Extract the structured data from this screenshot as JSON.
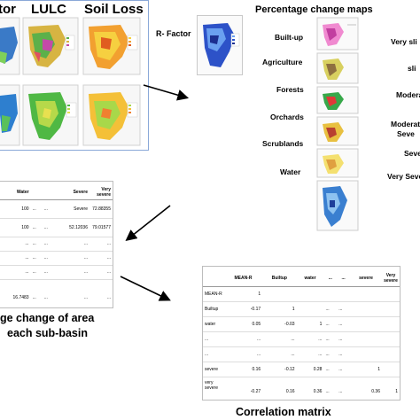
{
  "left_panel": {
    "titles": [
      "tor",
      "LULC",
      "Soil Loss"
    ]
  },
  "r_factor": {
    "label": "R- Factor"
  },
  "percentage_maps": {
    "title": "Percentage change maps",
    "categories": [
      "Built-up",
      "Agriculture",
      "Forests",
      "Orchards",
      "Scrublands",
      "Water"
    ],
    "severity": [
      "Very sli",
      "sli",
      "Modera",
      "Moderat",
      "Seve",
      "Seve",
      "Very Seve"
    ]
  },
  "area_table": {
    "headers": [
      "Water",
      "",
      "",
      "Severe",
      "Very severe"
    ],
    "rows": [
      [
        "100",
        "...",
        "...",
        "Severe",
        "72.88355"
      ],
      [
        "100",
        "...",
        "...",
        "52.12036",
        "79.01577"
      ],
      [
        "...",
        "...",
        "...",
        "...",
        "..."
      ],
      [
        "...",
        "...",
        "...",
        "...",
        "..."
      ],
      [
        "...",
        "...",
        "...",
        "...",
        "..."
      ],
      [
        "16.7483",
        "...",
        "...",
        "...",
        "..."
      ]
    ],
    "caption_line1": "ge change of area",
    "caption_line2": "each sub-basin"
  },
  "correlation": {
    "headers": [
      "",
      "MEAN-R",
      "Builtup",
      "water",
      "...",
      "...",
      "severe",
      "Very severe"
    ],
    "rows": [
      [
        "MEAN-R",
        "1",
        "",
        "",
        "",
        "",
        "",
        ""
      ],
      [
        "Builtup",
        "-0.17",
        "1",
        "",
        "...",
        "...",
        "",
        ""
      ],
      [
        "water",
        "0.05",
        "-0.03",
        "1",
        "...",
        "...",
        "",
        ""
      ],
      [
        "...",
        "...",
        "...",
        "...",
        "...",
        "...",
        "",
        ""
      ],
      [
        "...",
        "...",
        "...",
        "...",
        "...",
        "...",
        "",
        ""
      ],
      [
        "severe",
        "0.16",
        "-0.12",
        "0.28",
        "...",
        "...",
        "1",
        ""
      ],
      [
        "very severe",
        "-0.27",
        "0.16",
        "0.36",
        "...",
        "...",
        "0.36",
        "1"
      ]
    ],
    "caption": "Correlation matrix"
  }
}
